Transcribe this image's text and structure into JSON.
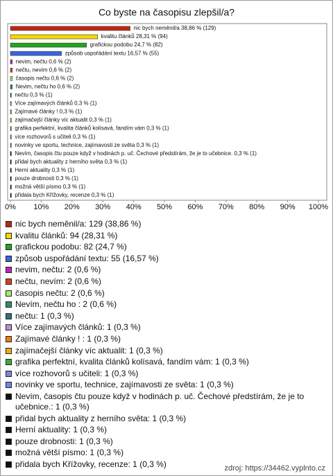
{
  "chart_data": {
    "type": "hbar",
    "title": "Co byste na časopisu zlepšil/a?",
    "values": [
      38.86,
      28.31,
      24.7,
      16.57,
      0.6,
      0.6,
      0.6,
      0.6,
      0.3,
      0.3,
      0.3,
      0.3,
      0.3,
      0.3,
      0.3,
      0.3,
      0.3,
      0.3,
      0.3,
      0.3,
      0.3
    ],
    "value_labels": [
      "nic bych neměnil/a 38,86 % (129)",
      "kvalitu článků 28,31 % (94)",
      "grafickou podobu 24,7 % (82)",
      "způsob uspořádání textu 16,57 % (55)",
      "nevim, nečtu 0,6 % (2)",
      "nečtu, nevím 0,6 % (2)",
      "časopis nečtu 0,6 % (2)",
      "Nevim, nečtu ho  0,6 % (2)",
      "nečtu 0,3 % (1)",
      "Více zajímavých článků 0,3 % (1)",
      "Zajímavé články !  0,3 % (1)",
      "zajímačejší články víc aktualit 0,3 % (1)",
      "grafika perfektní, kvalita článků kolísavá, fandím vám 0,3 % (1)",
      "více rozhovorů s učiteli 0,3 % (1)",
      "novinky ve sportu, technice, zajímavosti ze světa 0,3 % (1)",
      "Nevím, časopis čtu pouze když v hodinách p. uč. Čechové předstírám, že je to učebnice. 0,3 % (1)",
      "přidal bych aktuality z herního světa 0,3 % (1)",
      "Herní aktuality 0,3 % (1)",
      "pouze drobnosti 0,3 % (1)",
      "možná větší písmo 0,3 % (1)",
      "přidala bych Křížovky, recenze 0,3 % (1)"
    ],
    "legend_labels": [
      "nic bych neměnil/a: 129 (38,86 %)",
      "kvalitu článků: 94 (28,31 %)",
      "grafickou podobu: 82 (24,7 %)",
      "způsob uspořádání textu: 55 (16,57 %)",
      "nevim, nečtu: 2 (0,6 %)",
      "nečtu, nevím: 2 (0,6 %)",
      "časopis nečtu: 2 (0,6 %)",
      "Nevím, nečtu ho : 2 (0,6 %)",
      "nečtu: 1 (0,3 %)",
      "Více zajímavých článků: 1 (0,3 %)",
      "Zajímavé články ! : 1 (0,3 %)",
      "zajímačejší články víc aktualit: 1 (0,3 %)",
      "grafika perfektní, kvalita článků kolísavá, fandím vám: 1 (0,3 %)",
      "více rozhovorů s učiteli: 1 (0,3 %)",
      "novinky ve sportu, technice, zajímavosti ze světa: 1 (0,3 %)",
      "Nevím, časopis čtu pouze když v hodinách p. uč. Čechové předstírám, že je to učebnice.: 1 (0,3 %)",
      "přidal bych aktuality z herního světa: 1 (0,3 %)",
      "Herní aktuality: 1 (0,3 %)",
      "pouze drobnosti: 1 (0,3 %)",
      "možná větší písmo: 1 (0,3 %)",
      "přidala bych Křížovky, recenze: 1 (0,3 %)"
    ],
    "colors": [
      "#c0280c",
      "#f5d800",
      "#1fa51f",
      "#3a64e0",
      "#c020c0",
      "#d8401a",
      "#a8e870",
      "#2e8c74",
      "#336f80",
      "#b890d0",
      "#ee7a1a",
      "#eeaa22",
      "#3caa3c",
      "#7a88d8",
      "#6a8ae0",
      "#111111",
      "#111111",
      "#111111",
      "#111111",
      "#111111",
      "#111111"
    ],
    "xlim": [
      0,
      100
    ],
    "xticks": [
      {
        "value": 0,
        "label": "0%"
      },
      {
        "value": 10,
        "label": "10%"
      },
      {
        "value": 20,
        "label": "20%"
      },
      {
        "value": 30,
        "label": "30%"
      },
      {
        "value": 40,
        "label": "40%"
      },
      {
        "value": 50,
        "label": "50%"
      },
      {
        "value": 60,
        "label": "60%"
      },
      {
        "value": 70,
        "label": "70%"
      },
      {
        "value": 80,
        "label": "80%"
      },
      {
        "value": 90,
        "label": "90%"
      },
      {
        "value": 100,
        "label": "100%"
      }
    ],
    "grid": false,
    "source": "zdroj: https://34462.vyplnto.cz"
  }
}
